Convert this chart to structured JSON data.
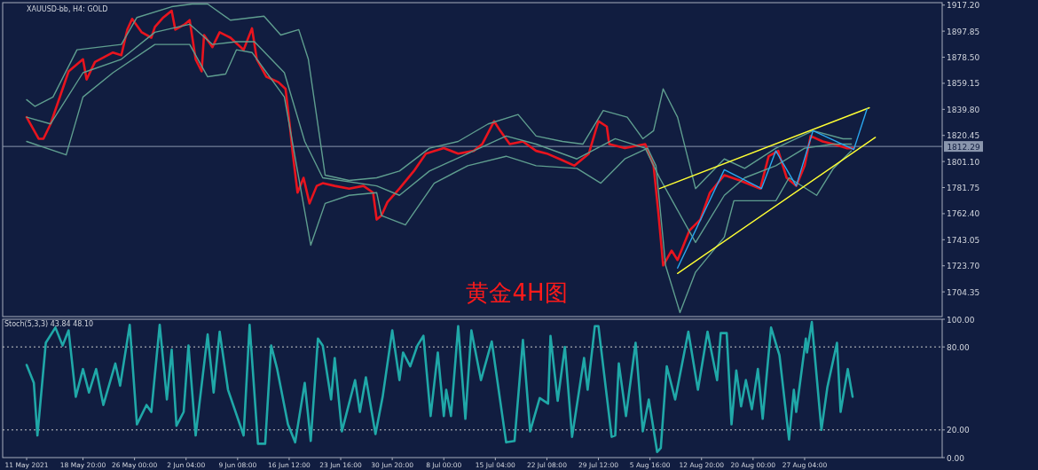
{
  "chart_data": [
    {
      "type": "line",
      "title": "黄金4H图",
      "annotations": [
        "XAUUSD-bb, H4: GOLD"
      ],
      "series": [
        {
          "color": "#e8141e",
          "x": [
            "2021-05-11T00:00",
            "2021-05-12T16:00",
            "2021-05-13T08:00",
            "2021-05-14T08:00",
            "2021-05-16T00:00",
            "2021-05-16T20:00",
            "2021-05-18T20:00",
            "2021-05-19T08:00",
            "2021-05-20T12:00",
            "2021-05-23T00:00",
            "2021-05-24T04:00",
            "2021-05-25T00:00",
            "2021-05-25T16:00",
            "2021-05-27T00:00",
            "2021-05-28T08:00",
            "2021-05-28T20:00",
            "2021-05-30T00:00",
            "2021-05-31T04:00",
            "2021-05-31T16:00",
            "2021-06-02T00:00",
            "2021-06-02T16:00",
            "2021-06-03T12:00",
            "2021-06-04T08:00",
            "2021-06-04T16:00",
            "2021-06-05T20:00",
            "2021-06-06T20:00",
            "2021-06-08T08:00",
            "2021-06-10T04:00",
            "2021-06-11T08:00",
            "2021-06-12T00:00",
            "2021-06-13T08:00",
            "2021-06-15T00:00",
            "2021-06-16T00:00",
            "2021-06-16T16:00",
            "2021-06-17T00:00",
            "2021-06-17T16:00",
            "2021-06-18T12:00",
            "2021-06-19T08:00",
            "2021-06-20T08:00",
            "2021-06-21T04:00",
            "2021-06-22T20:00",
            "2021-06-24T20:00",
            "2021-06-26T20:00",
            "2021-06-28T04:00",
            "2021-06-28T16:00",
            "2021-06-29T08:00",
            "2021-06-30T04:00",
            "2021-07-01T20:00",
            "2021-07-03T20:00",
            "2021-07-05T12:00",
            "2021-07-08T00:00",
            "2021-07-10T00:00",
            "2021-07-12T04:00",
            "2021-07-13T08:00",
            "2021-07-15T00:00",
            "2021-07-15T20:00",
            "2021-07-17T04:00",
            "2021-07-19T00:00",
            "2021-07-20T20:00",
            "2021-07-22T08:00",
            "2021-07-24T12:00",
            "2021-07-26T04:00",
            "2021-07-28T04:00",
            "2021-07-29T12:00",
            "2021-07-30T16:00",
            "2021-07-31T00:00",
            "2021-08-02T04:00",
            "2021-08-05T00:00",
            "2021-08-06T04:00",
            "2021-08-06T20:00",
            "2021-08-07T12:00",
            "2021-08-08T16:00",
            "2021-08-09T12:00",
            "2021-08-11T04:00",
            "2021-08-12T16:00",
            "2021-08-14T00:00",
            "2021-08-16T00:00",
            "2021-08-18T04:00",
            "2021-08-21T00:00",
            "2021-08-22T04:00",
            "2021-08-23T12:00",
            "2021-08-24T16:00",
            "2021-08-26T00:00",
            "2021-08-27T04:00",
            "2021-08-28T00:00",
            "2021-08-29T16:00",
            "2021-08-31T04:00",
            "2021-09-02T00:00",
            "2021-09-03T00:00"
          ],
          "values": [
            1834,
            1818,
            1818,
            1829,
            1855,
            1868,
            1877,
            1862,
            1875,
            1882,
            1880,
            1899,
            1907,
            1897,
            1893,
            1901,
            1908,
            1913,
            1899,
            1903,
            1906,
            1877,
            1868,
            1895,
            1886,
            1897,
            1893,
            1884,
            1900,
            1877,
            1864,
            1860,
            1855,
            1824,
            1807,
            1778,
            1789,
            1770,
            1783,
            1785,
            1783,
            1781,
            1783,
            1778,
            1758,
            1761,
            1771,
            1781,
            1794,
            1807,
            1811,
            1807,
            1809,
            1814,
            1831,
            1824,
            1814,
            1816,
            1809,
            1807,
            1802,
            1798,
            1807,
            1831,
            1827,
            1814,
            1811,
            1814,
            1798,
            1763,
            1724,
            1735,
            1728,
            1750,
            1758,
            1778,
            1791,
            1787,
            1781,
            1805,
            1809,
            1789,
            1783,
            1798,
            1820,
            1816,
            1814,
            1811,
            1811
          ]
        },
        {
          "color": "#5f9e8f",
          "x": [
            "2021-05-11T00:00",
            "2021-05-12T04:00",
            "2021-05-14T16:00",
            "2021-05-18T00:00",
            "2021-05-24T04:00",
            "2021-05-26T08:00",
            "2021-05-31T04:00",
            "2021-06-03T00:00",
            "2021-06-05T04:00",
            "2021-06-08T08:00",
            "2021-06-13T00:00",
            "2021-06-15T08:00",
            "2021-06-17T20:00",
            "2021-06-19T04:00",
            "2021-06-20T16:00",
            "2021-06-21T12:00",
            "2021-06-24T20:00",
            "2021-06-28T16:00",
            "2021-07-01T20:00",
            "2021-07-06T00:00",
            "2021-07-10T00:00",
            "2021-07-14T04:00",
            "2021-07-18T08:00",
            "2021-07-20T20:00",
            "2021-07-24T12:00",
            "2021-07-27T08:00",
            "2021-07-30T04:00",
            "2021-08-02T12:00",
            "2021-08-04T16:00",
            "2021-08-06T04:00",
            "2021-08-07T12:00",
            "2021-08-09T12:00",
            "2021-08-12T00:00",
            "2021-08-16T00:00",
            "2021-08-18T20:00",
            "2021-08-23T04:00",
            "2021-08-28T08:00",
            "2021-09-01T12:00",
            "2021-09-02T16:00"
          ],
          "values": [
            1847,
            1842,
            1849,
            1884,
            1888,
            1908,
            1916,
            1918,
            1918,
            1906,
            1909,
            1895,
            1899,
            1877,
            1822,
            1791,
            1787,
            1789,
            1794,
            1811,
            1816,
            1829,
            1836,
            1820,
            1816,
            1814,
            1839,
            1834,
            1818,
            1824,
            1855,
            1834,
            1781,
            1803,
            1796,
            1811,
            1824,
            1818,
            1818
          ]
        },
        {
          "color": "#5f9e8f",
          "x": [
            "2021-05-11T00:00",
            "2021-05-14T08:00",
            "2021-05-18T20:00",
            "2021-05-24T04:00",
            "2021-05-28T20:00",
            "2021-06-02T16:00",
            "2021-06-05T20:00",
            "2021-06-09T04:00",
            "2021-06-11T16:00",
            "2021-06-15T20:00",
            "2021-06-18T16:00",
            "2021-06-21T04:00",
            "2021-06-28T16:00",
            "2021-07-01T20:00",
            "2021-07-06T00:00",
            "2021-07-11T08:00",
            "2021-07-16T16:00",
            "2021-07-20T20:00",
            "2021-07-26T12:00",
            "2021-07-31T20:00",
            "2021-08-05T00:00",
            "2021-08-07T00:00",
            "2021-08-12T00:00",
            "2021-08-16T00:00",
            "2021-08-18T20:00",
            "2021-08-23T04:00",
            "2021-08-27T04:00",
            "2021-08-31T04:00",
            "2021-09-02T16:00"
          ],
          "values": [
            1834,
            1829,
            1867,
            1877,
            1897,
            1903,
            1888,
            1890,
            1890,
            1867,
            1816,
            1789,
            1783,
            1776,
            1794,
            1807,
            1820,
            1814,
            1803,
            1818,
            1811,
            1789,
            1741,
            1776,
            1789,
            1798,
            1811,
            1814,
            1814
          ]
        },
        {
          "color": "#5f9e8f",
          "x": [
            "2021-05-11T00:00",
            "2021-05-16T12:00",
            "2021-05-18T20:00",
            "2021-05-23T00:00",
            "2021-05-28T20:00",
            "2021-06-02T16:00",
            "2021-06-05T04:00",
            "2021-06-07T16:00",
            "2021-06-09T04:00",
            "2021-06-11T08:00",
            "2021-06-15T20:00",
            "2021-06-17T20:00",
            "2021-06-19T12:00",
            "2021-06-21T12:00",
            "2021-06-24T20:00",
            "2021-06-28T16:00",
            "2021-06-29T08:00",
            "2021-07-02T16:00",
            "2021-07-06T16:00",
            "2021-07-11T08:00",
            "2021-07-16T16:00",
            "2021-07-20T20:00",
            "2021-07-26T12:00",
            "2021-07-29T20:00",
            "2021-08-02T04:00",
            "2021-08-05T08:00",
            "2021-08-06T12:00",
            "2021-08-07T20:00",
            "2021-08-09T20:00",
            "2021-08-12T00:00",
            "2021-08-16T00:00",
            "2021-08-17T08:00",
            "2021-08-23T04:00",
            "2021-08-25T00:00",
            "2021-08-28T20:00",
            "2021-08-31T04:00",
            "2021-09-02T16:00"
          ],
          "values": [
            1816,
            1806,
            1849,
            1867,
            1888,
            1888,
            1864,
            1866,
            1884,
            1882,
            1849,
            1789,
            1739,
            1770,
            1776,
            1778,
            1761,
            1754,
            1785,
            1798,
            1805,
            1798,
            1796,
            1785,
            1803,
            1811,
            1798,
            1724,
            1689,
            1719,
            1745,
            1772,
            1772,
            1789,
            1776,
            1796,
            1809
          ]
        },
        {
          "color": "#ffff33",
          "x": [
            "2021-08-07T00:00",
            "2021-09-05T04:00"
          ],
          "values": [
            1781,
            1841
          ]
        },
        {
          "color": "#ffff33",
          "x": [
            "2021-08-09T12:00",
            "2021-09-06T00:00"
          ],
          "values": [
            1718,
            1819
          ]
        },
        {
          "color": "#2aa8f0",
          "x": [
            "2021-08-09T12:00",
            "2021-08-16T00:00",
            "2021-08-21T04:00",
            "2021-08-23T04:00",
            "2021-08-26T00:00",
            "2021-08-28T08:00",
            "2021-09-03T00:00",
            "2021-09-04T20:00"
          ],
          "values": [
            1722,
            1795,
            1781,
            1809,
            1783,
            1824,
            1810,
            1840
          ]
        }
      ],
      "xlim": [
        "2021-05-07T16:00",
        "2021-09-15T07:00"
      ],
      "ylim": [
        1686,
        1919
      ],
      "yticks": [
        {
          "value": 1917.2,
          "label": "1917.20"
        },
        {
          "value": 1897.85,
          "label": "1897.85"
        },
        {
          "value": 1878.5,
          "label": "1878.50"
        },
        {
          "value": 1859.15,
          "label": "1859.15"
        },
        {
          "value": 1839.8,
          "label": "1839.80"
        },
        {
          "value": 1820.45,
          "label": "1820.45"
        },
        {
          "value": 1801.1,
          "label": "1801.10"
        },
        {
          "value": 1781.75,
          "label": "1781.75"
        },
        {
          "value": 1762.4,
          "label": "1762.40"
        },
        {
          "value": 1743.05,
          "label": "1743.05"
        },
        {
          "value": 1723.7,
          "label": "1723.70"
        },
        {
          "value": 1704.35,
          "label": "1704.35"
        }
      ],
      "ref_lines": [
        {
          "axis": "y",
          "value": 1812.29,
          "label": "1812.29",
          "color": "#8a96ad"
        }
      ],
      "tick_labels": "y"
    },
    {
      "type": "line",
      "title": "Stoch(5,3,3) 43.84 48.10",
      "series": [
        {
          "color": "#20a8a8",
          "x": [
            "2021-05-11T00:00",
            "2021-05-12T00:00",
            "2021-05-12T12:00",
            "2021-05-13T16:00",
            "2021-05-15T00:00",
            "2021-05-16T00:00",
            "2021-05-16T20:00",
            "2021-05-17T20:00",
            "2021-05-18T20:00",
            "2021-05-19T16:00",
            "2021-05-20T16:00",
            "2021-05-21T16:00",
            "2021-05-23T08:00",
            "2021-05-24T00:00",
            "2021-05-25T08:00",
            "2021-05-26T08:00",
            "2021-05-27T16:00",
            "2021-05-28T08:00",
            "2021-05-29T12:00",
            "2021-05-30T12:00",
            "2021-05-31T04:00",
            "2021-05-31T20:00",
            "2021-06-01T20:00",
            "2021-06-02T12:00",
            "2021-06-03T12:00",
            "2021-06-05T04:00",
            "2021-06-06T00:00",
            "2021-06-06T20:00",
            "2021-06-08T00:00",
            "2021-06-10T04:00",
            "2021-06-11T00:00",
            "2021-06-12T04:00",
            "2021-06-13T04:00",
            "2021-06-14T00:00",
            "2021-06-14T20:00",
            "2021-06-16T08:00",
            "2021-06-17T08:00",
            "2021-06-18T16:00",
            "2021-06-19T12:00",
            "2021-06-20T12:00",
            "2021-06-21T04:00",
            "2021-06-22T08:00",
            "2021-06-22T20:00",
            "2021-06-23T20:00",
            "2021-06-25T16:00",
            "2021-06-26T08:00",
            "2021-06-27T04:00",
            "2021-06-28T12:00",
            "2021-06-29T12:00",
            "2021-06-30T20:00",
            "2021-07-01T20:00",
            "2021-07-02T08:00",
            "2021-07-03T08:00",
            "2021-07-04T08:00",
            "2021-07-05T04:00",
            "2021-07-06T04:00",
            "2021-07-07T04:00",
            "2021-07-08T00:00",
            "2021-07-08T08:00",
            "2021-07-09T00:00",
            "2021-07-10T00:00",
            "2021-07-11T00:00",
            "2021-07-11T20:00",
            "2021-07-13T04:00",
            "2021-07-14T16:00",
            "2021-07-16T16:00",
            "2021-07-17T20:00",
            "2021-07-19T00:00",
            "2021-07-20T00:00",
            "2021-07-21T08:00",
            "2021-07-22T12:00",
            "2021-07-22T20:00",
            "2021-07-23T20:00",
            "2021-07-24T20:00",
            "2021-07-25T20:00",
            "2021-07-27T12:00",
            "2021-07-28T00:00",
            "2021-07-29T00:00",
            "2021-07-29T12:00",
            "2021-07-31T08:00",
            "2021-07-31T20:00",
            "2021-08-01T08:00",
            "2021-08-02T08:00",
            "2021-08-03T16:00",
            "2021-08-04T16:00",
            "2021-08-05T12:00",
            "2021-08-06T16:00",
            "2021-08-07T04:00",
            "2021-08-08T00:00",
            "2021-08-09T04:00",
            "2021-08-11T00:00",
            "2021-08-12T08:00",
            "2021-08-13T16:00",
            "2021-08-15T00:00",
            "2021-08-15T12:00",
            "2021-08-16T08:00",
            "2021-08-17T00:00",
            "2021-08-17T16:00",
            "2021-08-18T08:00",
            "2021-08-19T00:00",
            "2021-08-19T20:00",
            "2021-08-20T16:00",
            "2021-08-21T08:00",
            "2021-08-22T12:00",
            "2021-08-23T16:00",
            "2021-08-25T00:00",
            "2021-08-25T16:00",
            "2021-08-26T00:00",
            "2021-08-27T08:00",
            "2021-08-27T12:00",
            "2021-08-28T04:00",
            "2021-08-29T12:00",
            "2021-08-30T08:00",
            "2021-08-31T16:00",
            "2021-09-01T04:00",
            "2021-09-02T04:00",
            "2021-09-02T20:00"
          ],
          "values": [
            67,
            54,
            16,
            83,
            94,
            81,
            92,
            44,
            64,
            47,
            64,
            38,
            68,
            52,
            96,
            24,
            38,
            33,
            96,
            42,
            78,
            23,
            33,
            81,
            16,
            89,
            47,
            91,
            49,
            16,
            96,
            10,
            10,
            81,
            64,
            24,
            11,
            54,
            12,
            86,
            81,
            42,
            72,
            19,
            56,
            33,
            58,
            17,
            44,
            92,
            56,
            76,
            66,
            81,
            88,
            30,
            76,
            30,
            49,
            30,
            95,
            28,
            92,
            56,
            84,
            11,
            12,
            85,
            19,
            43,
            39,
            88,
            41,
            80,
            15,
            72,
            49,
            95,
            95,
            15,
            16,
            68,
            30,
            83,
            19,
            42,
            4,
            7,
            66,
            42,
            91,
            49,
            91,
            56,
            90,
            90,
            24,
            63,
            37,
            56,
            35,
            64,
            28,
            94,
            74,
            13,
            49,
            33,
            86,
            76,
            98,
            20,
            51,
            83,
            33,
            64,
            44
          ]
        }
      ],
      "xlim": [
        "2021-05-07T16:00",
        "2021-09-15T07:00"
      ],
      "ylim": [
        0,
        100
      ],
      "xticks": [
        {
          "value": "2021-05-11T00:00",
          "label": "11 May 2021"
        },
        {
          "value": "2021-05-18T20:00",
          "label": "18 May 20:00"
        },
        {
          "value": "2021-05-26T00:00",
          "label": "26 May 00:00"
        },
        {
          "value": "2021-06-02T04:00",
          "label": "2 Jun 04:00"
        },
        {
          "value": "2021-06-09T08:00",
          "label": "9 Jun 08:00"
        },
        {
          "value": "2021-06-16T12:00",
          "label": "16 Jun 12:00"
        },
        {
          "value": "2021-06-23T16:00",
          "label": "23 Jun 16:00"
        },
        {
          "value": "2021-06-30T20:00",
          "label": "30 Jun 20:00"
        },
        {
          "value": "2021-07-08T00:00",
          "label": "8 Jul 00:00"
        },
        {
          "value": "2021-07-15T04:00",
          "label": "15 Jul 04:00"
        },
        {
          "value": "2021-07-22T08:00",
          "label": "22 Jul 08:00"
        },
        {
          "value": "2021-07-29T12:00",
          "label": "29 Jul 12:00"
        },
        {
          "value": "2021-08-05T16:00",
          "label": "5 Aug 16:00"
        },
        {
          "value": "2021-08-12T20:00",
          "label": "12 Aug 20:00"
        },
        {
          "value": "2021-08-20T00:00",
          "label": "20 Aug 00:00"
        },
        {
          "value": "2021-08-27T04:00",
          "label": "27 Aug 04:00"
        }
      ],
      "yticks": [
        {
          "value": 100,
          "label": "100.00"
        },
        {
          "value": 80,
          "label": "80.00"
        },
        {
          "value": 20,
          "label": "20.00"
        },
        {
          "value": 0,
          "label": "0.00"
        }
      ],
      "ref_lines": [
        {
          "axis": "y",
          "value": 80,
          "color": "#c8c8c8",
          "line_style": "dotted"
        },
        {
          "axis": "y",
          "value": 20,
          "color": "#c8c8c8",
          "line_style": "dotted"
        }
      ]
    }
  ]
}
